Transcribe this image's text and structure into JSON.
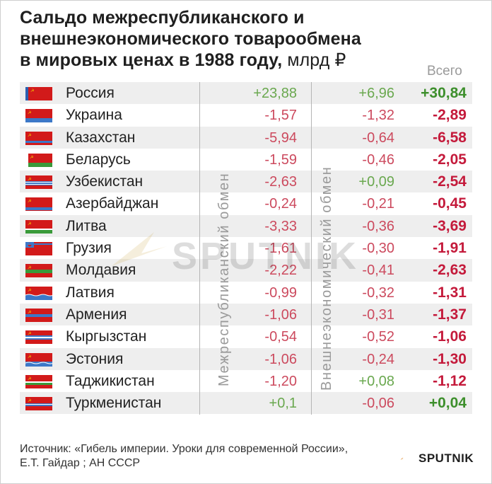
{
  "title": {
    "line1": "Сальдо межреспубликанского и",
    "line2": "внешнеэкономического товарообмена",
    "line3": "в мировых ценах в 1988 году,",
    "unit": "млрд ₽"
  },
  "columns": {
    "inter_republic": "Межреспубликанский обмен",
    "foreign_trade": "Внешнеэкономический обмен",
    "total": "Всего"
  },
  "rows": [
    {
      "name": "Россия",
      "inter": "+23,88",
      "foreign": "+6,96",
      "total": "+30,84",
      "flag": "russia-flag-icon"
    },
    {
      "name": "Украина",
      "inter": "-1,57",
      "foreign": "-1,32",
      "total": "-2,89",
      "flag": "ukraine-flag-icon"
    },
    {
      "name": "Казахстан",
      "inter": "-5,94",
      "foreign": "-0,64",
      "total": "-6,58",
      "flag": "kazakhstan-flag-icon"
    },
    {
      "name": "Беларусь",
      "inter": "-1,59",
      "foreign": "-0,46",
      "total": "-2,05",
      "flag": "belarus-flag-icon"
    },
    {
      "name": "Узбекистан",
      "inter": "-2,63",
      "foreign": "+0,09",
      "total": "-2,54",
      "flag": "uzbekistan-flag-icon"
    },
    {
      "name": "Азербайджан",
      "inter": "-0,24",
      "foreign": "-0,21",
      "total": "-0,45",
      "flag": "azerbaijan-flag-icon"
    },
    {
      "name": "Литва",
      "inter": "-3,33",
      "foreign": "-0,36",
      "total": "-3,69",
      "flag": "lithuania-flag-icon"
    },
    {
      "name": "Грузия",
      "inter": "-1,61",
      "foreign": "-0,30",
      "total": "-1,91",
      "flag": "georgia-flag-icon"
    },
    {
      "name": "Молдавия",
      "inter": "-2,22",
      "foreign": "-0,41",
      "total": "-2,63",
      "flag": "moldova-flag-icon"
    },
    {
      "name": "Латвия",
      "inter": "-0,99",
      "foreign": "-0,32",
      "total": "-1,31",
      "flag": "latvia-flag-icon"
    },
    {
      "name": "Армения",
      "inter": "-1,06",
      "foreign": "-0,31",
      "total": "-1,37",
      "flag": "armenia-flag-icon"
    },
    {
      "name": "Кыргызстан",
      "inter": "-0,54",
      "foreign": "-0,52",
      "total": "-1,06",
      "flag": "kyrgyzstan-flag-icon"
    },
    {
      "name": "Эстония",
      "inter": "-1,06",
      "foreign": "-0,24",
      "total": "-1,30",
      "flag": "estonia-flag-icon"
    },
    {
      "name": "Таджикистан",
      "inter": "-1,20",
      "foreign": "+0,08",
      "total": "-1,12",
      "flag": "tajikistan-flag-icon"
    },
    {
      "name": "Туркменистан",
      "inter": "+0,1",
      "foreign": "-0,06",
      "total": "+0,04",
      "flag": "turkmenistan-flag-icon"
    }
  ],
  "chart_data": {
    "type": "table",
    "columns": [
      "Межреспубликанский обмен",
      "Внешнеэкономический обмен",
      "Всего"
    ],
    "categories": [
      "Россия",
      "Украина",
      "Казахстан",
      "Беларусь",
      "Узбекистан",
      "Азербайджан",
      "Литва",
      "Грузия",
      "Молдавия",
      "Латвия",
      "Армения",
      "Кыргызстан",
      "Эстония",
      "Таджикистан",
      "Туркменистан"
    ],
    "series": [
      {
        "name": "Межреспубликанский обмен",
        "values": [
          23.88,
          -1.57,
          -5.94,
          -1.59,
          -2.63,
          -0.24,
          -3.33,
          -1.61,
          -2.22,
          -0.99,
          -1.06,
          -0.54,
          -1.06,
          -1.2,
          0.1
        ]
      },
      {
        "name": "Внешнеэкономический обмен",
        "values": [
          6.96,
          -1.32,
          -0.64,
          -0.46,
          0.09,
          -0.21,
          -0.36,
          -0.3,
          -0.41,
          -0.32,
          -0.31,
          -0.52,
          -0.24,
          0.08,
          -0.06
        ]
      },
      {
        "name": "Всего",
        "values": [
          30.84,
          -2.89,
          -6.58,
          -2.05,
          -2.54,
          -0.45,
          -3.69,
          -1.91,
          -2.63,
          -1.31,
          -1.37,
          -1.06,
          -1.3,
          -1.12,
          0.04
        ]
      }
    ],
    "colors": {
      "positive": "#6aa84f",
      "negative": "#cc4a5e",
      "total_positive": "#3d8f2c",
      "total_negative": "#c41a3b"
    }
  },
  "watermark": "SPUTNIK",
  "source": {
    "line1": "Источник: «Гибель империи. Уроки для современной России»,",
    "line2": "Е.Т. Гайдар ; АН СССР"
  },
  "brand": "SPUTNIK"
}
